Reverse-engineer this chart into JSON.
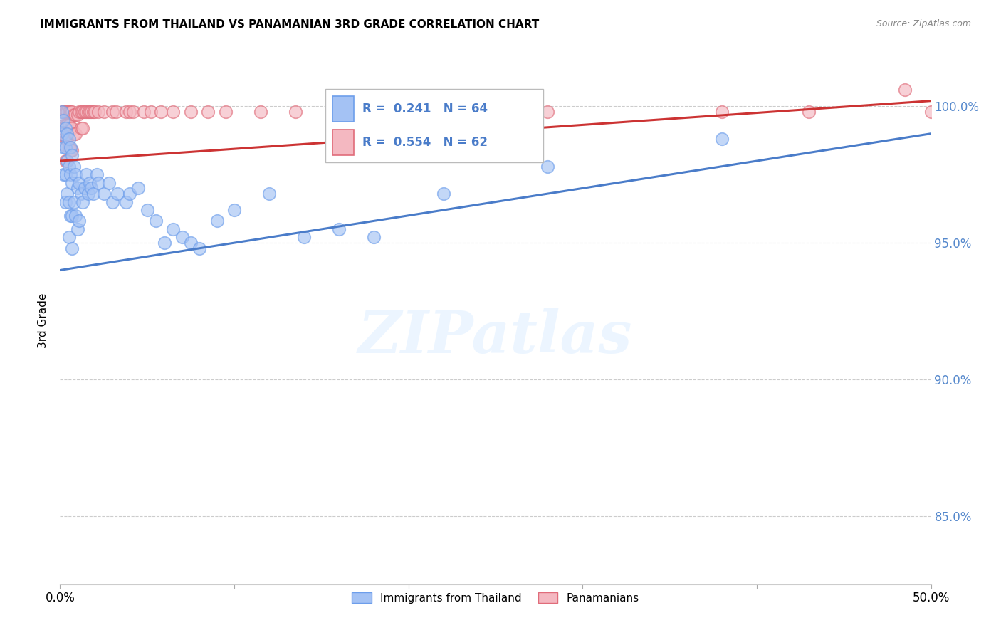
{
  "title": "IMMIGRANTS FROM THAILAND VS PANAMANIAN 3RD GRADE CORRELATION CHART",
  "source": "Source: ZipAtlas.com",
  "ylabel": "3rd Grade",
  "ytick_values": [
    0.85,
    0.9,
    0.95,
    1.0
  ],
  "ytick_labels": [
    "85.0%",
    "90.0%",
    "95.0%",
    "100.0%"
  ],
  "xlim": [
    0.0,
    0.5
  ],
  "ylim": [
    0.825,
    1.018
  ],
  "xtick_positions": [
    0.0,
    0.1,
    0.2,
    0.3,
    0.4,
    0.5
  ],
  "xtick_labels": [
    "0.0%",
    "",
    "",
    "",
    "",
    "50.0%"
  ],
  "blue_color": "#a4c2f4",
  "pink_color": "#f4b8c1",
  "blue_edge_color": "#6d9eeb",
  "pink_edge_color": "#e06c7a",
  "blue_line_color": "#4a7cc9",
  "pink_line_color": "#cc3333",
  "watermark_text": "ZIPatlas",
  "legend_items": [
    "Immigrants from Thailand",
    "Panamanians"
  ],
  "legend_r1": "R =  0.241   N = 64",
  "legend_r2": "R =  0.554   N = 62",
  "blue_line_x": [
    0.0,
    0.5
  ],
  "blue_line_y": [
    0.94,
    0.99
  ],
  "pink_line_x": [
    0.0,
    0.5
  ],
  "pink_line_y": [
    0.98,
    1.002
  ],
  "blue_x": [
    0.001,
    0.001,
    0.002,
    0.002,
    0.002,
    0.003,
    0.003,
    0.003,
    0.003,
    0.004,
    0.004,
    0.004,
    0.005,
    0.005,
    0.005,
    0.005,
    0.006,
    0.006,
    0.006,
    0.007,
    0.007,
    0.007,
    0.007,
    0.008,
    0.008,
    0.009,
    0.009,
    0.01,
    0.01,
    0.011,
    0.011,
    0.012,
    0.013,
    0.014,
    0.015,
    0.016,
    0.017,
    0.018,
    0.019,
    0.021,
    0.022,
    0.025,
    0.028,
    0.03,
    0.033,
    0.038,
    0.04,
    0.045,
    0.05,
    0.055,
    0.06,
    0.065,
    0.07,
    0.075,
    0.08,
    0.09,
    0.1,
    0.12,
    0.14,
    0.16,
    0.18,
    0.22,
    0.28,
    0.38
  ],
  "blue_y": [
    0.998,
    0.99,
    0.995,
    0.985,
    0.975,
    0.992,
    0.985,
    0.975,
    0.965,
    0.99,
    0.98,
    0.968,
    0.988,
    0.978,
    0.965,
    0.952,
    0.985,
    0.975,
    0.96,
    0.982,
    0.972,
    0.96,
    0.948,
    0.978,
    0.965,
    0.975,
    0.96,
    0.97,
    0.955,
    0.972,
    0.958,
    0.968,
    0.965,
    0.97,
    0.975,
    0.968,
    0.972,
    0.97,
    0.968,
    0.975,
    0.972,
    0.968,
    0.972,
    0.965,
    0.968,
    0.965,
    0.968,
    0.97,
    0.962,
    0.958,
    0.95,
    0.955,
    0.952,
    0.95,
    0.948,
    0.958,
    0.962,
    0.968,
    0.952,
    0.955,
    0.952,
    0.968,
    0.978,
    0.988
  ],
  "pink_x": [
    0.001,
    0.001,
    0.002,
    0.002,
    0.002,
    0.003,
    0.003,
    0.003,
    0.003,
    0.004,
    0.004,
    0.004,
    0.004,
    0.005,
    0.005,
    0.005,
    0.006,
    0.006,
    0.006,
    0.007,
    0.007,
    0.007,
    0.008,
    0.008,
    0.009,
    0.009,
    0.01,
    0.011,
    0.012,
    0.012,
    0.013,
    0.013,
    0.014,
    0.015,
    0.016,
    0.017,
    0.018,
    0.019,
    0.02,
    0.022,
    0.025,
    0.03,
    0.032,
    0.038,
    0.04,
    0.042,
    0.048,
    0.052,
    0.058,
    0.065,
    0.075,
    0.085,
    0.095,
    0.115,
    0.135,
    0.165,
    0.22,
    0.28,
    0.38,
    0.43,
    0.485,
    0.5
  ],
  "pink_y": [
    0.998,
    0.992,
    0.998,
    0.993,
    0.986,
    0.998,
    0.993,
    0.988,
    0.98,
    0.998,
    0.993,
    0.988,
    0.98,
    0.998,
    0.993,
    0.985,
    0.998,
    0.992,
    0.984,
    0.998,
    0.992,
    0.984,
    0.997,
    0.99,
    0.997,
    0.99,
    0.997,
    0.998,
    0.998,
    0.992,
    0.998,
    0.992,
    0.998,
    0.998,
    0.998,
    0.998,
    0.998,
    0.998,
    0.998,
    0.998,
    0.998,
    0.998,
    0.998,
    0.998,
    0.998,
    0.998,
    0.998,
    0.998,
    0.998,
    0.998,
    0.998,
    0.998,
    0.998,
    0.998,
    0.998,
    0.998,
    0.998,
    0.998,
    0.998,
    0.998,
    1.006,
    0.998
  ]
}
